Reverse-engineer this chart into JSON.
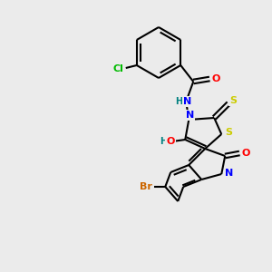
{
  "background_color": "#ebebeb",
  "bond_color": "#000000",
  "atom_colors": {
    "O": "#ff0000",
    "N": "#0000ff",
    "S": "#cccc00",
    "Cl": "#00bb00",
    "Br": "#cc6600",
    "H": "#008080",
    "C": "#000000"
  },
  "bg": "#ebebeb"
}
